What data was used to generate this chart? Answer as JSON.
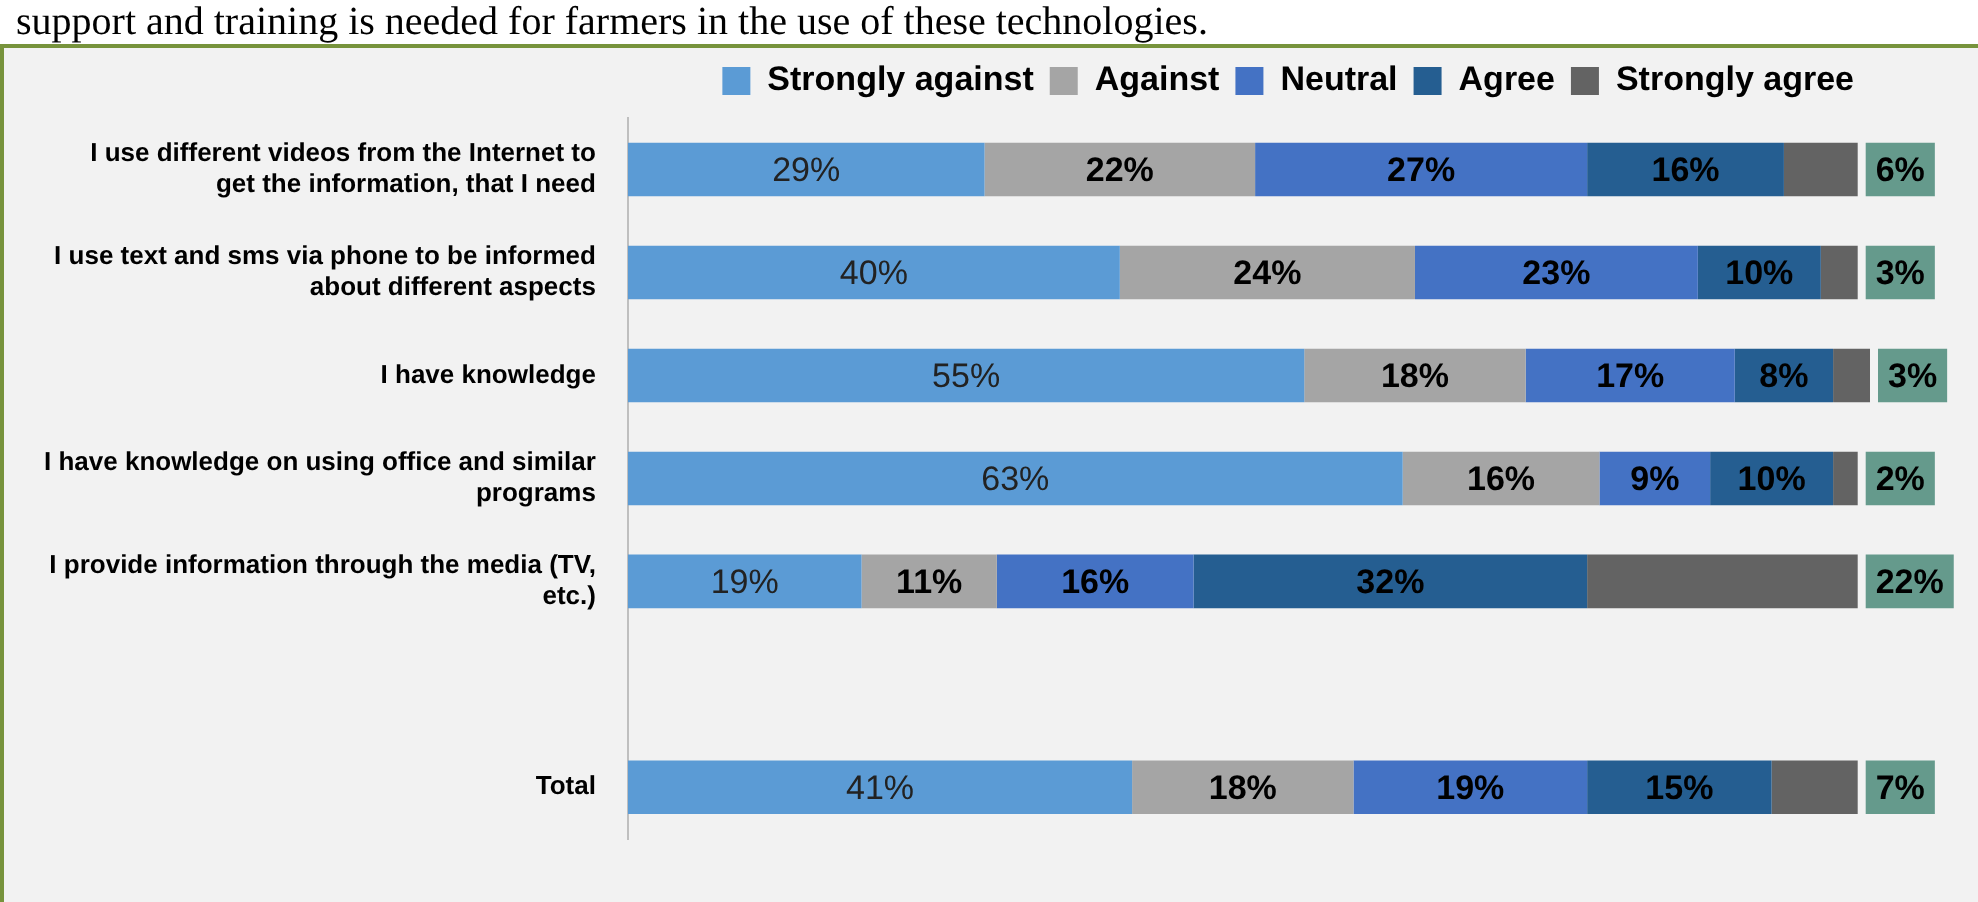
{
  "chart_data": {
    "type": "bar",
    "orientation": "horizontal",
    "stacked": true,
    "legend": "top",
    "tick_labels": "y",
    "annotations": [
      "support and training is needed for farmers in the use of these technologies."
    ],
    "categories": [
      "I use different videos from the Internet to get the information, that I need",
      "I use text and sms via phone to be informed about different aspects",
      "I have knowledge",
      "I have knowledge on using office and similar programs",
      "I provide information through the media (TV, etc.)",
      null,
      "Total"
    ],
    "series": [
      {
        "name": "Strongly against",
        "color": "#5b9bd5",
        "values": [
          29,
          40,
          55,
          63,
          19,
          null,
          41
        ],
        "value_labels": [
          "29%",
          "40%",
          "55%",
          "63%",
          "19%",
          null,
          "41%"
        ]
      },
      {
        "name": "Against",
        "color": "#a5a5a5",
        "values": [
          22,
          24,
          18,
          16,
          11,
          null,
          18
        ],
        "value_labels": [
          "22%",
          "24%",
          "18%",
          "16%",
          "11%",
          null,
          "18%"
        ]
      },
      {
        "name": "Neutral",
        "color": "#4472c4",
        "values": [
          27,
          23,
          17,
          9,
          16,
          null,
          19
        ],
        "value_labels": [
          "27%",
          "23%",
          "17%",
          "9%",
          "16%",
          null,
          "19%"
        ]
      },
      {
        "name": "Agree",
        "color": "#255e91",
        "values": [
          16,
          10,
          8,
          10,
          32,
          null,
          15
        ],
        "value_labels": [
          "16%",
          "10%",
          "8%",
          "10%",
          "32%",
          null,
          "15%"
        ]
      },
      {
        "name": "Strongly agree",
        "color": "#636363",
        "values": [
          6,
          3,
          3,
          2,
          22,
          null,
          7
        ],
        "value_labels": [
          "6%",
          "3%",
          "3%",
          "2%",
          "22%",
          null,
          "7%"
        ]
      }
    ]
  }
}
